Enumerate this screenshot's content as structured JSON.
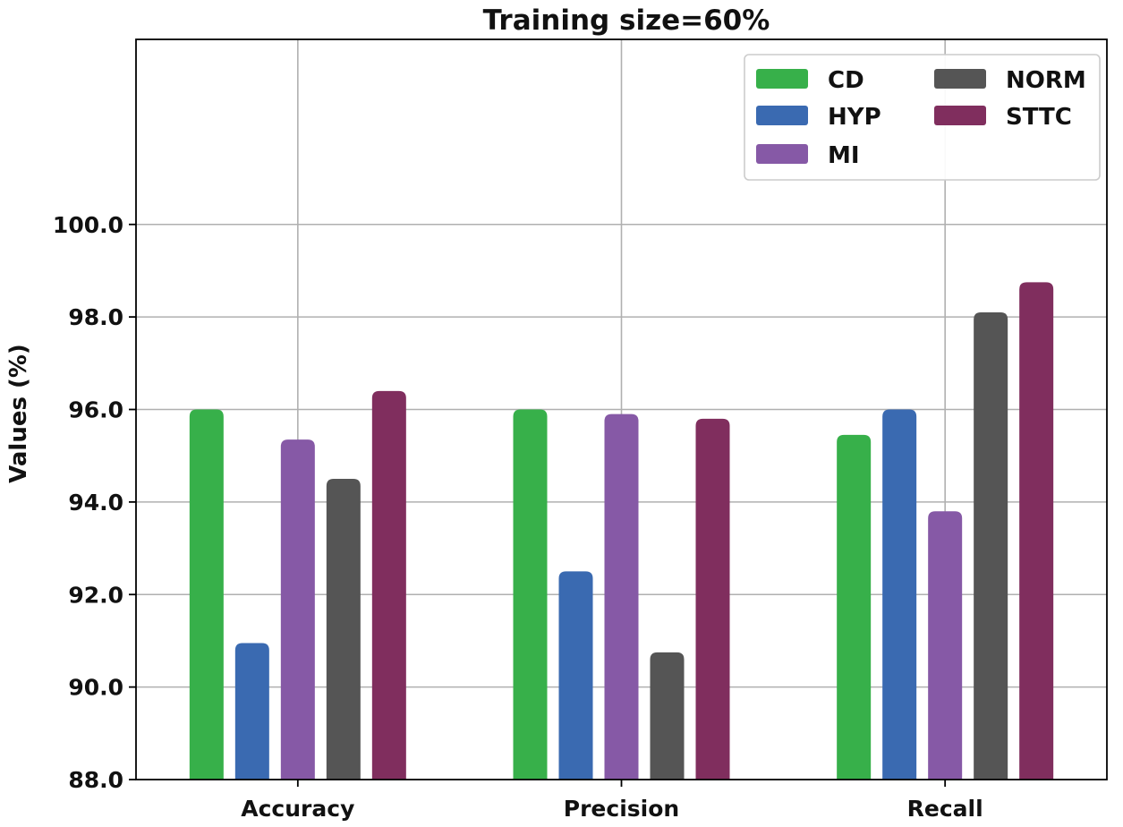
{
  "chart_data": {
    "type": "bar",
    "title": "Training size=60%",
    "xlabel": "",
    "ylabel": "Values (%)",
    "ylim": [
      88.0,
      104.0
    ],
    "yticks": [
      "88.0",
      "90.0",
      "92.0",
      "94.0",
      "96.0",
      "98.0",
      "100.0"
    ],
    "categories": [
      "Accuracy",
      "Precision",
      "Recall"
    ],
    "series": [
      {
        "name": "CD",
        "color": "#37b04a",
        "values": [
          96.0,
          96.0,
          95.45
        ]
      },
      {
        "name": "HYP",
        "color": "#3a6ab1",
        "values": [
          90.95,
          92.5,
          96.0
        ]
      },
      {
        "name": "MI",
        "color": "#8659a6",
        "values": [
          95.35,
          95.9,
          93.8
        ]
      },
      {
        "name": "NORM",
        "color": "#555555",
        "values": [
          94.5,
          90.75,
          98.1
        ]
      },
      {
        "name": "STTC",
        "color": "#802e5e",
        "values": [
          96.4,
          95.8,
          98.75
        ]
      }
    ],
    "legend_position": "top-right",
    "grid": true
  }
}
